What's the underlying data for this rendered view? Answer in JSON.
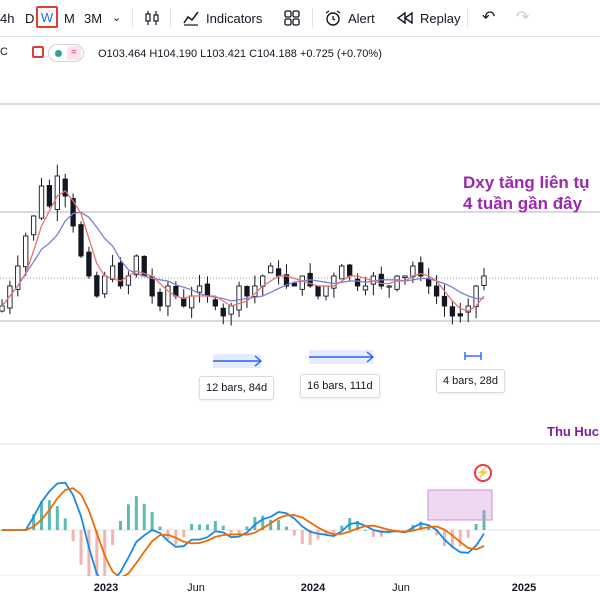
{
  "toolbar": {
    "intervals": [
      "4h",
      "D",
      "W",
      "M",
      "3M"
    ],
    "active_interval": "W",
    "indicators_label": "Indicators",
    "alert_label": "Alert",
    "replay_label": "Replay"
  },
  "legend": {
    "symbol_fragment": "C",
    "open": "O103.464",
    "high": "H104.190",
    "low": "L103.421",
    "close": "C104.188",
    "change": "+0.725 (+0.70%)"
  },
  "annotation": {
    "line1": "Dxy tăng liên tụ",
    "line2": "4 tuần gần đây"
  },
  "author": "Thu Huc",
  "ranges": [
    {
      "label": "12 bars, 84d"
    },
    {
      "label": "16 bars, 111d"
    },
    {
      "label": "4 bars, 28d"
    }
  ],
  "x_axis": {
    "labels": [
      "2023",
      "Jun",
      "2024",
      "Jun",
      "2025"
    ]
  },
  "colors": {
    "accent": "#2962ff",
    "up": "#131722",
    "ma_fast": "#e57373",
    "ma_slow": "#7e7ed6",
    "macd": "#1e88e5",
    "signal": "#ef6c00",
    "annotation": "#9c27b0",
    "range": "#2962ff"
  },
  "chart_data": {
    "type": "candlestick",
    "price_series_y": [
      101,
      103,
      105,
      108,
      110,
      113,
      111,
      114,
      112,
      109,
      106,
      104,
      102,
      104,
      105,
      103,
      104,
      106,
      104,
      102,
      101,
      103,
      102,
      101,
      102,
      103,
      102,
      101,
      100,
      101,
      103,
      102,
      103,
      104,
      105,
      104,
      103,
      103,
      104,
      103,
      102,
      103,
      104,
      105,
      104,
      103,
      103,
      104,
      103,
      103,
      104,
      104,
      105,
      104,
      103,
      102,
      101,
      100,
      100,
      101,
      103,
      104
    ]
  }
}
